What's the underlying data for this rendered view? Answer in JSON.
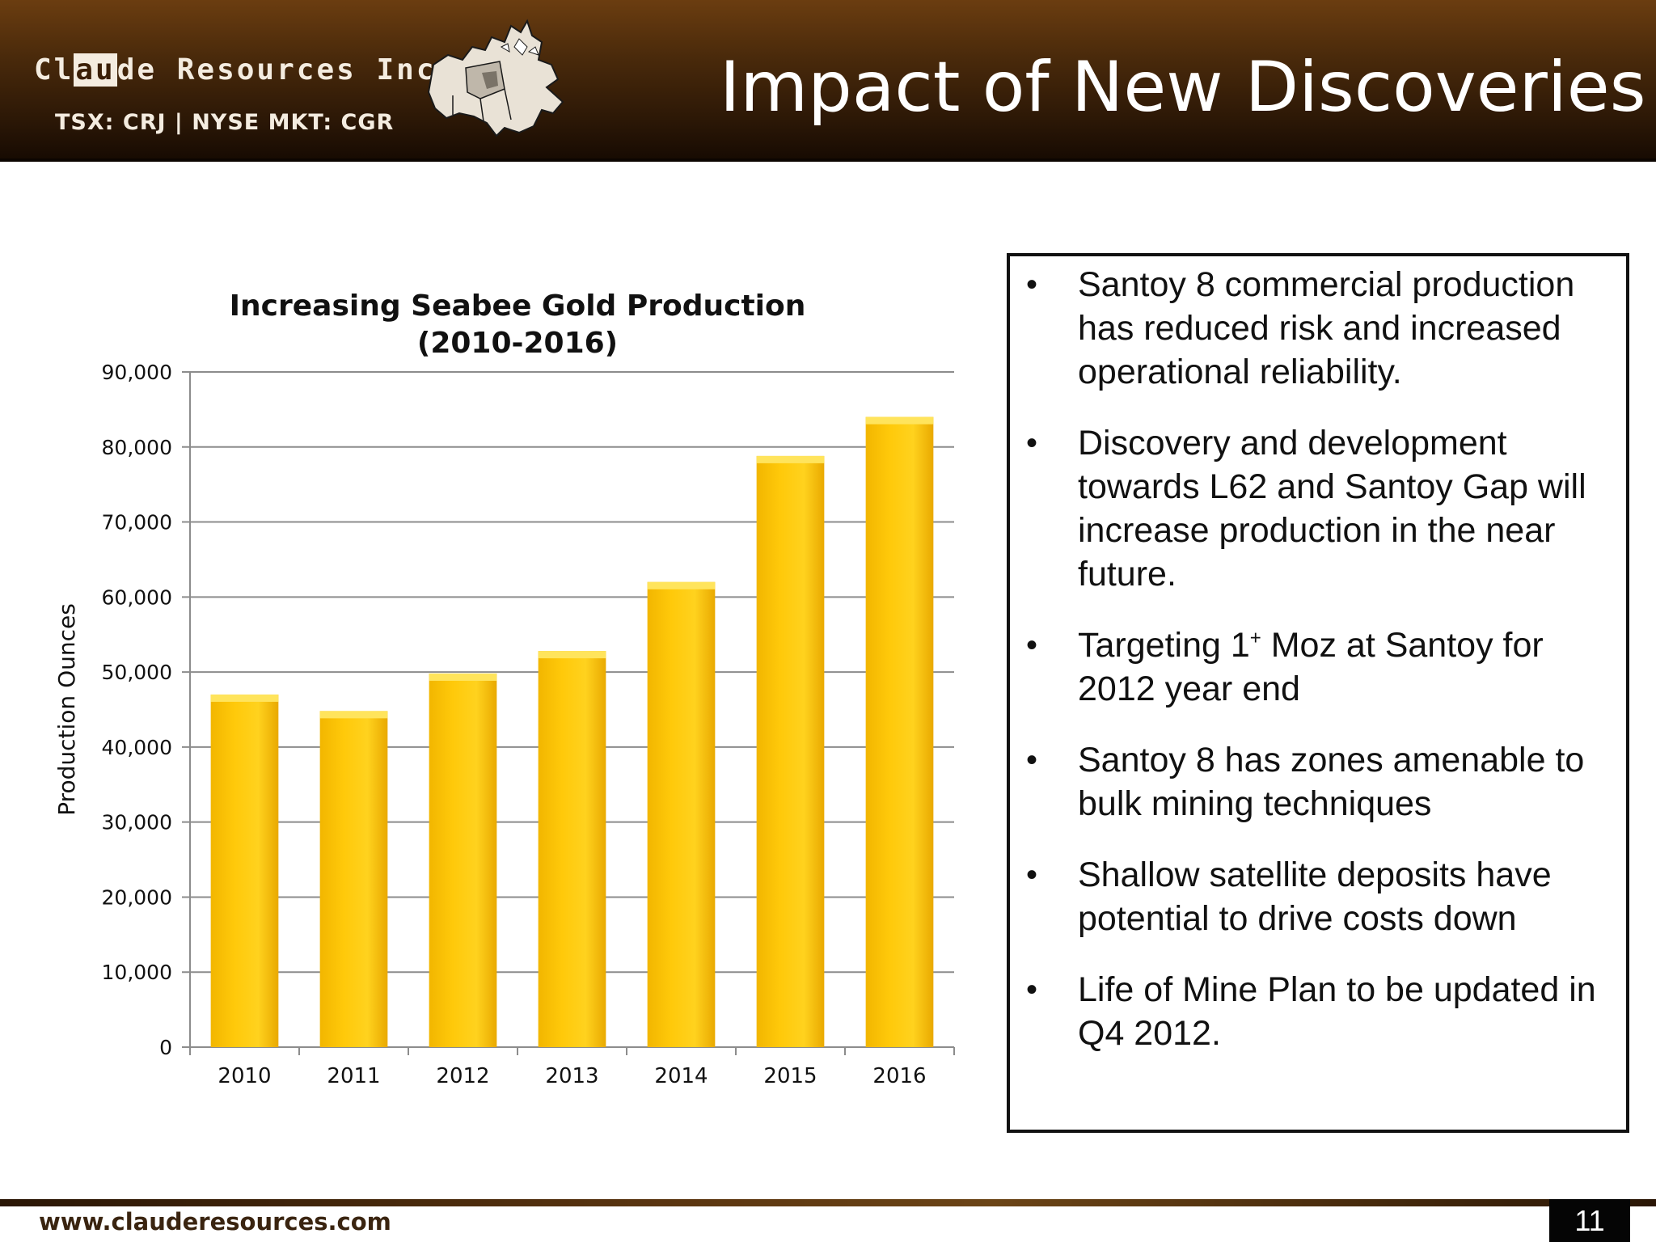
{
  "header": {
    "logo": {
      "pre": "Cl",
      "highlight": "au",
      "post": "de Resources Inc."
    },
    "ticker": "TSX: CRJ  |  NYSE MKT: CGR",
    "title": "Impact of New Discoveries"
  },
  "bullets": [
    "Santoy 8 commercial production has reduced risk and increased operational reliability.",
    "Discovery and development towards L62 and Santoy Gap will increase production in the near future.",
    {
      "pre": "Targeting 1",
      "sup": "+",
      "post": " Moz at Santoy for 2012 year end"
    },
    "Santoy 8 has zones amenable to bulk mining techniques",
    "Shallow satellite deposits have potential to drive costs down",
    "Life of Mine Plan to be updated in Q4 2012."
  ],
  "footer": {
    "url": "www.clauderesources.com",
    "page": "11"
  },
  "colors": {
    "bar_fill": "#ffc90a",
    "bar_top": "#ffe45c",
    "header_dark": "#2b1706",
    "header_light": "#6b3d10"
  },
  "chart_data": {
    "type": "bar",
    "title": [
      "Increasing Seabee Gold Production",
      "(2010-2016)"
    ],
    "xlabel": "",
    "ylabel": "Production Ounces",
    "categories": [
      "2010",
      "2011",
      "2012",
      "2013",
      "2014",
      "2015",
      "2016"
    ],
    "values": [
      47000,
      44800,
      49800,
      52800,
      62000,
      78800,
      84000
    ],
    "ylim": [
      0,
      90000
    ],
    "yticks": [
      0,
      10000,
      20000,
      30000,
      40000,
      50000,
      60000,
      70000,
      80000,
      90000
    ],
    "ytick_labels": [
      "0",
      "10,000",
      "20,000",
      "30,000",
      "40,000",
      "50,000",
      "60,000",
      "70,000",
      "80,000",
      "90,000"
    ],
    "grid": true,
    "legend": "none"
  }
}
